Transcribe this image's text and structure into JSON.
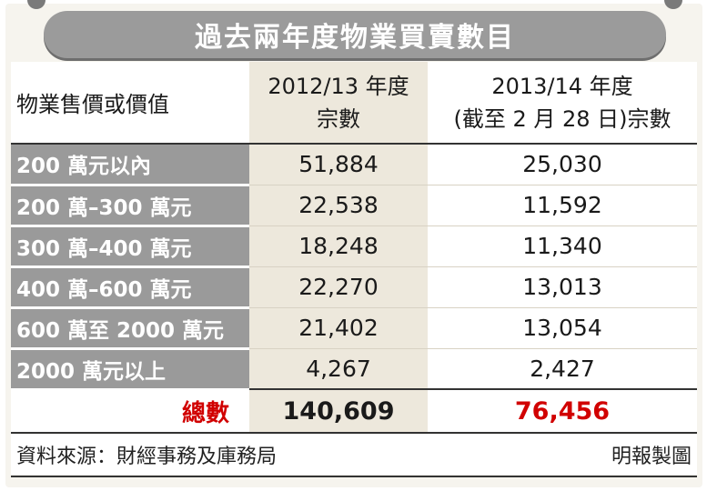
{
  "title": "過去兩年度物業買賣數目",
  "table": {
    "header": {
      "label": "物業售價或價值",
      "col1_line1": "2012/13 年度",
      "col1_line2": "宗數",
      "col2_line1": "2013/14 年度",
      "col2_line2": "(截至 2 月 28 日)宗數"
    },
    "rows": [
      {
        "category": "200 萬元以內",
        "v2012": "51,884",
        "v2013": "25,030"
      },
      {
        "category": "200 萬–300 萬元",
        "v2012": "22,538",
        "v2013": "11,592"
      },
      {
        "category": "300 萬–400 萬元",
        "v2012": "18,248",
        "v2013": "11,340"
      },
      {
        "category": "400 萬–600 萬元",
        "v2012": "22,270",
        "v2013": "13,013"
      },
      {
        "category": "600 萬至 2000 萬元",
        "v2012": "21,402",
        "v2013": "13,054"
      },
      {
        "category": "2000 萬元以上",
        "v2012": "4,267",
        "v2013": "2,427"
      }
    ],
    "total": {
      "label": "總數",
      "v2012": "140,609",
      "v2013": "76,456"
    }
  },
  "footer": {
    "source": "資料來源：財經事務及庫務局",
    "credit": "明報製圖"
  },
  "colors": {
    "accent_red": "#d10000",
    "category_gray": "#9a9a9a",
    "column_tint": "#ede8dc"
  },
  "chart_data": {
    "type": "table",
    "title": "過去兩年度物業買賣數目",
    "columns": [
      "物業售價或價值",
      "2012/13 年度 宗數",
      "2013/14 年度 (截至 2 月 28 日)宗數"
    ],
    "categories": [
      "200 萬元以內",
      "200 萬–300 萬元",
      "300 萬–400 萬元",
      "400 萬–600 萬元",
      "600 萬至 2000 萬元",
      "2000 萬元以上"
    ],
    "series": [
      {
        "name": "2012/13 年度 宗數",
        "values": [
          51884,
          22538,
          18248,
          22270,
          21402,
          4267
        ],
        "total": 140609
      },
      {
        "name": "2013/14 年度 (截至 2 月 28 日)宗數",
        "values": [
          25030,
          11592,
          11340,
          13013,
          13054,
          2427
        ],
        "total": 76456
      }
    ]
  }
}
